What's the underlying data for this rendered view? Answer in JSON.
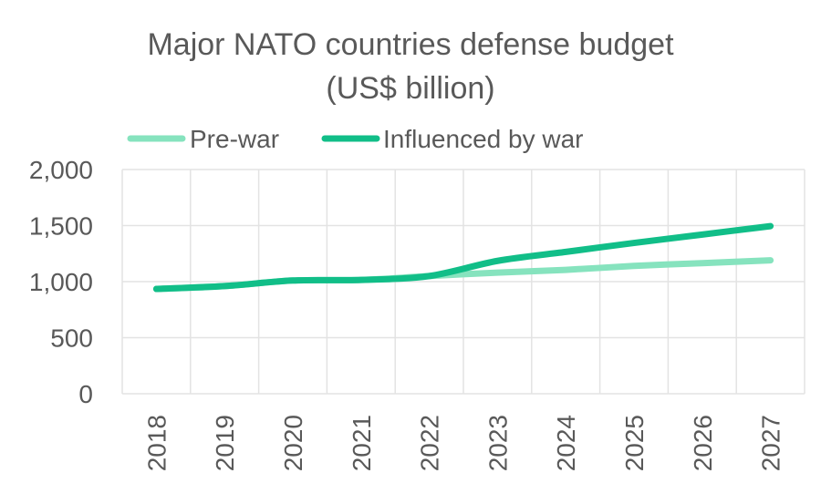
{
  "chart_data": {
    "type": "line",
    "title": [
      "Major NATO countries defense budget",
      "(US$ billion)"
    ],
    "xlabel": "",
    "ylabel": "",
    "categories": [
      "2018",
      "2019",
      "2020",
      "2021",
      "2022",
      "2023",
      "2024",
      "2025",
      "2026",
      "2027"
    ],
    "ylim": [
      0,
      2000
    ],
    "yticks": [
      0,
      500,
      1000,
      1500,
      2000
    ],
    "ytick_labels": [
      "0",
      "500",
      "1,000",
      "1,500",
      "2,000"
    ],
    "grid": true,
    "legend_position": "top-center",
    "series": [
      {
        "name": "Pre-war",
        "color": "#86e3be",
        "values": [
          935,
          960,
          1010,
          1015,
          1050,
          1080,
          1105,
          1140,
          1165,
          1190
        ]
      },
      {
        "name": "Influenced by war",
        "color": "#11be88",
        "values": [
          935,
          960,
          1010,
          1015,
          1050,
          1185,
          1265,
          1345,
          1420,
          1495
        ]
      }
    ]
  }
}
